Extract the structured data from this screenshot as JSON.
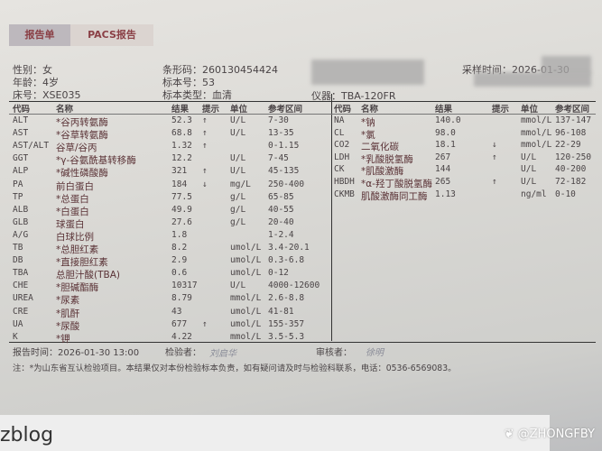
{
  "tabs": [
    {
      "label": "报告单",
      "active": true
    },
    {
      "label": "PACS报告",
      "active": false
    }
  ],
  "patient": {
    "gender": "性别：女",
    "age": "年龄：4岁",
    "bed": "床号：XSE035",
    "barcode": "条形码：260130454424",
    "specimen_no": "标本号：53",
    "specimen_type": "标本类型：血清",
    "instrument": "仪器：TBA-120FR",
    "sample_time": "采样时间：2026-01-30"
  },
  "headers": {
    "code": "代码",
    "name": "名称",
    "result": "结果",
    "hint": "提示",
    "unit": "单位",
    "ref": "参考区间"
  },
  "left_rows": [
    {
      "code": "ALT",
      "name": "*谷丙转氨酶",
      "result": "52.3",
      "hint": "↑",
      "unit": "U/L",
      "ref": "7-30"
    },
    {
      "code": "AST",
      "name": "*谷草转氨酶",
      "result": "68.8",
      "hint": "↑",
      "unit": "U/L",
      "ref": "13-35"
    },
    {
      "code": "AST/ALT",
      "name": "谷草/谷丙",
      "result": "1.32",
      "hint": "↑",
      "unit": "",
      "ref": "0-1.15"
    },
    {
      "code": "GGT",
      "name": "*γ-谷氨酰基转移酶",
      "result": "12.2",
      "hint": "",
      "unit": "U/L",
      "ref": "7-45"
    },
    {
      "code": "ALP",
      "name": "*碱性磷酸酶",
      "result": "321",
      "hint": "↑",
      "unit": "U/L",
      "ref": "45-135"
    },
    {
      "code": "PA",
      "name": "前白蛋白",
      "result": "184",
      "hint": "↓",
      "unit": "mg/L",
      "ref": "250-400"
    },
    {
      "code": "TP",
      "name": "*总蛋白",
      "result": "77.5",
      "hint": "",
      "unit": "g/L",
      "ref": "65-85"
    },
    {
      "code": "ALB",
      "name": "*白蛋白",
      "result": "49.9",
      "hint": "",
      "unit": "g/L",
      "ref": "40-55"
    },
    {
      "code": "GLB",
      "name": "球蛋白",
      "result": "27.6",
      "hint": "",
      "unit": "g/L",
      "ref": "20-40"
    },
    {
      "code": "A/G",
      "name": "白球比例",
      "result": "1.8",
      "hint": "",
      "unit": "",
      "ref": "1-2.4"
    },
    {
      "code": "TB",
      "name": "*总胆红素",
      "result": "8.2",
      "hint": "",
      "unit": "umol/L",
      "ref": "3.4-20.1"
    },
    {
      "code": "DB",
      "name": "*直接胆红素",
      "result": "2.9",
      "hint": "",
      "unit": "umol/L",
      "ref": "0.3-6.8"
    },
    {
      "code": "TBA",
      "name": "总胆汁酸(TBA)",
      "result": "0.6",
      "hint": "",
      "unit": "umol/L",
      "ref": "0-12"
    },
    {
      "code": "CHE",
      "name": "*胆碱酯酶",
      "result": "10317",
      "hint": "",
      "unit": "U/L",
      "ref": "4000-12600"
    },
    {
      "code": "UREA",
      "name": "*尿素",
      "result": "8.79",
      "hint": "",
      "unit": "mmol/L",
      "ref": "2.6-8.8"
    },
    {
      "code": "CRE",
      "name": "*肌酐",
      "result": "43",
      "hint": "",
      "unit": "umol/L",
      "ref": "41-81"
    },
    {
      "code": "UA",
      "name": "*尿酸",
      "result": "677",
      "hint": "↑",
      "unit": "umol/L",
      "ref": "155-357"
    },
    {
      "code": "K",
      "name": "*钾",
      "result": "4.22",
      "hint": "",
      "unit": "mmol/L",
      "ref": "3.5-5.3"
    }
  ],
  "right_rows": [
    {
      "code": "NA",
      "name": "*钠",
      "result": "140.0",
      "hint": "",
      "unit": "mmol/L",
      "ref": "137-147"
    },
    {
      "code": "CL",
      "name": "*氯",
      "result": "98.0",
      "hint": "",
      "unit": "mmol/L",
      "ref": "96-108"
    },
    {
      "code": "CO2",
      "name": "二氧化碳",
      "result": "18.1",
      "hint": "↓",
      "unit": "mmol/L",
      "ref": "22-29"
    },
    {
      "code": "LDH",
      "name": "*乳酸脱氢酶",
      "result": "267",
      "hint": "↑",
      "unit": "U/L",
      "ref": "120-250"
    },
    {
      "code": "CK",
      "name": "*肌酸激酶",
      "result": "144",
      "hint": "",
      "unit": "U/L",
      "ref": "40-200"
    },
    {
      "code": "HBDH",
      "name": "*α-羟丁酸脱氢酶",
      "result": "265",
      "hint": "↑",
      "unit": "U/L",
      "ref": "72-182"
    },
    {
      "code": "CKMB",
      "name": "肌酸激酶同工酶",
      "result": "1.13",
      "hint": "",
      "unit": "ng/ml",
      "ref": "0-10"
    }
  ],
  "footer": {
    "report_time": "报告时间：2026-01-30 13:00",
    "tester_label": "检验者：",
    "tester_sig": "刘启华",
    "reviewer_label": "审核者：",
    "reviewer_sig": "徐明",
    "note": "注：*为山东省互认检验项目。本结果仅对本份检验标本负责，如有疑问请及时与检验科联系，电话：0536-6569083。"
  },
  "watermark": {
    "left": "zblog",
    "right": "@ZHONGFBY"
  }
}
